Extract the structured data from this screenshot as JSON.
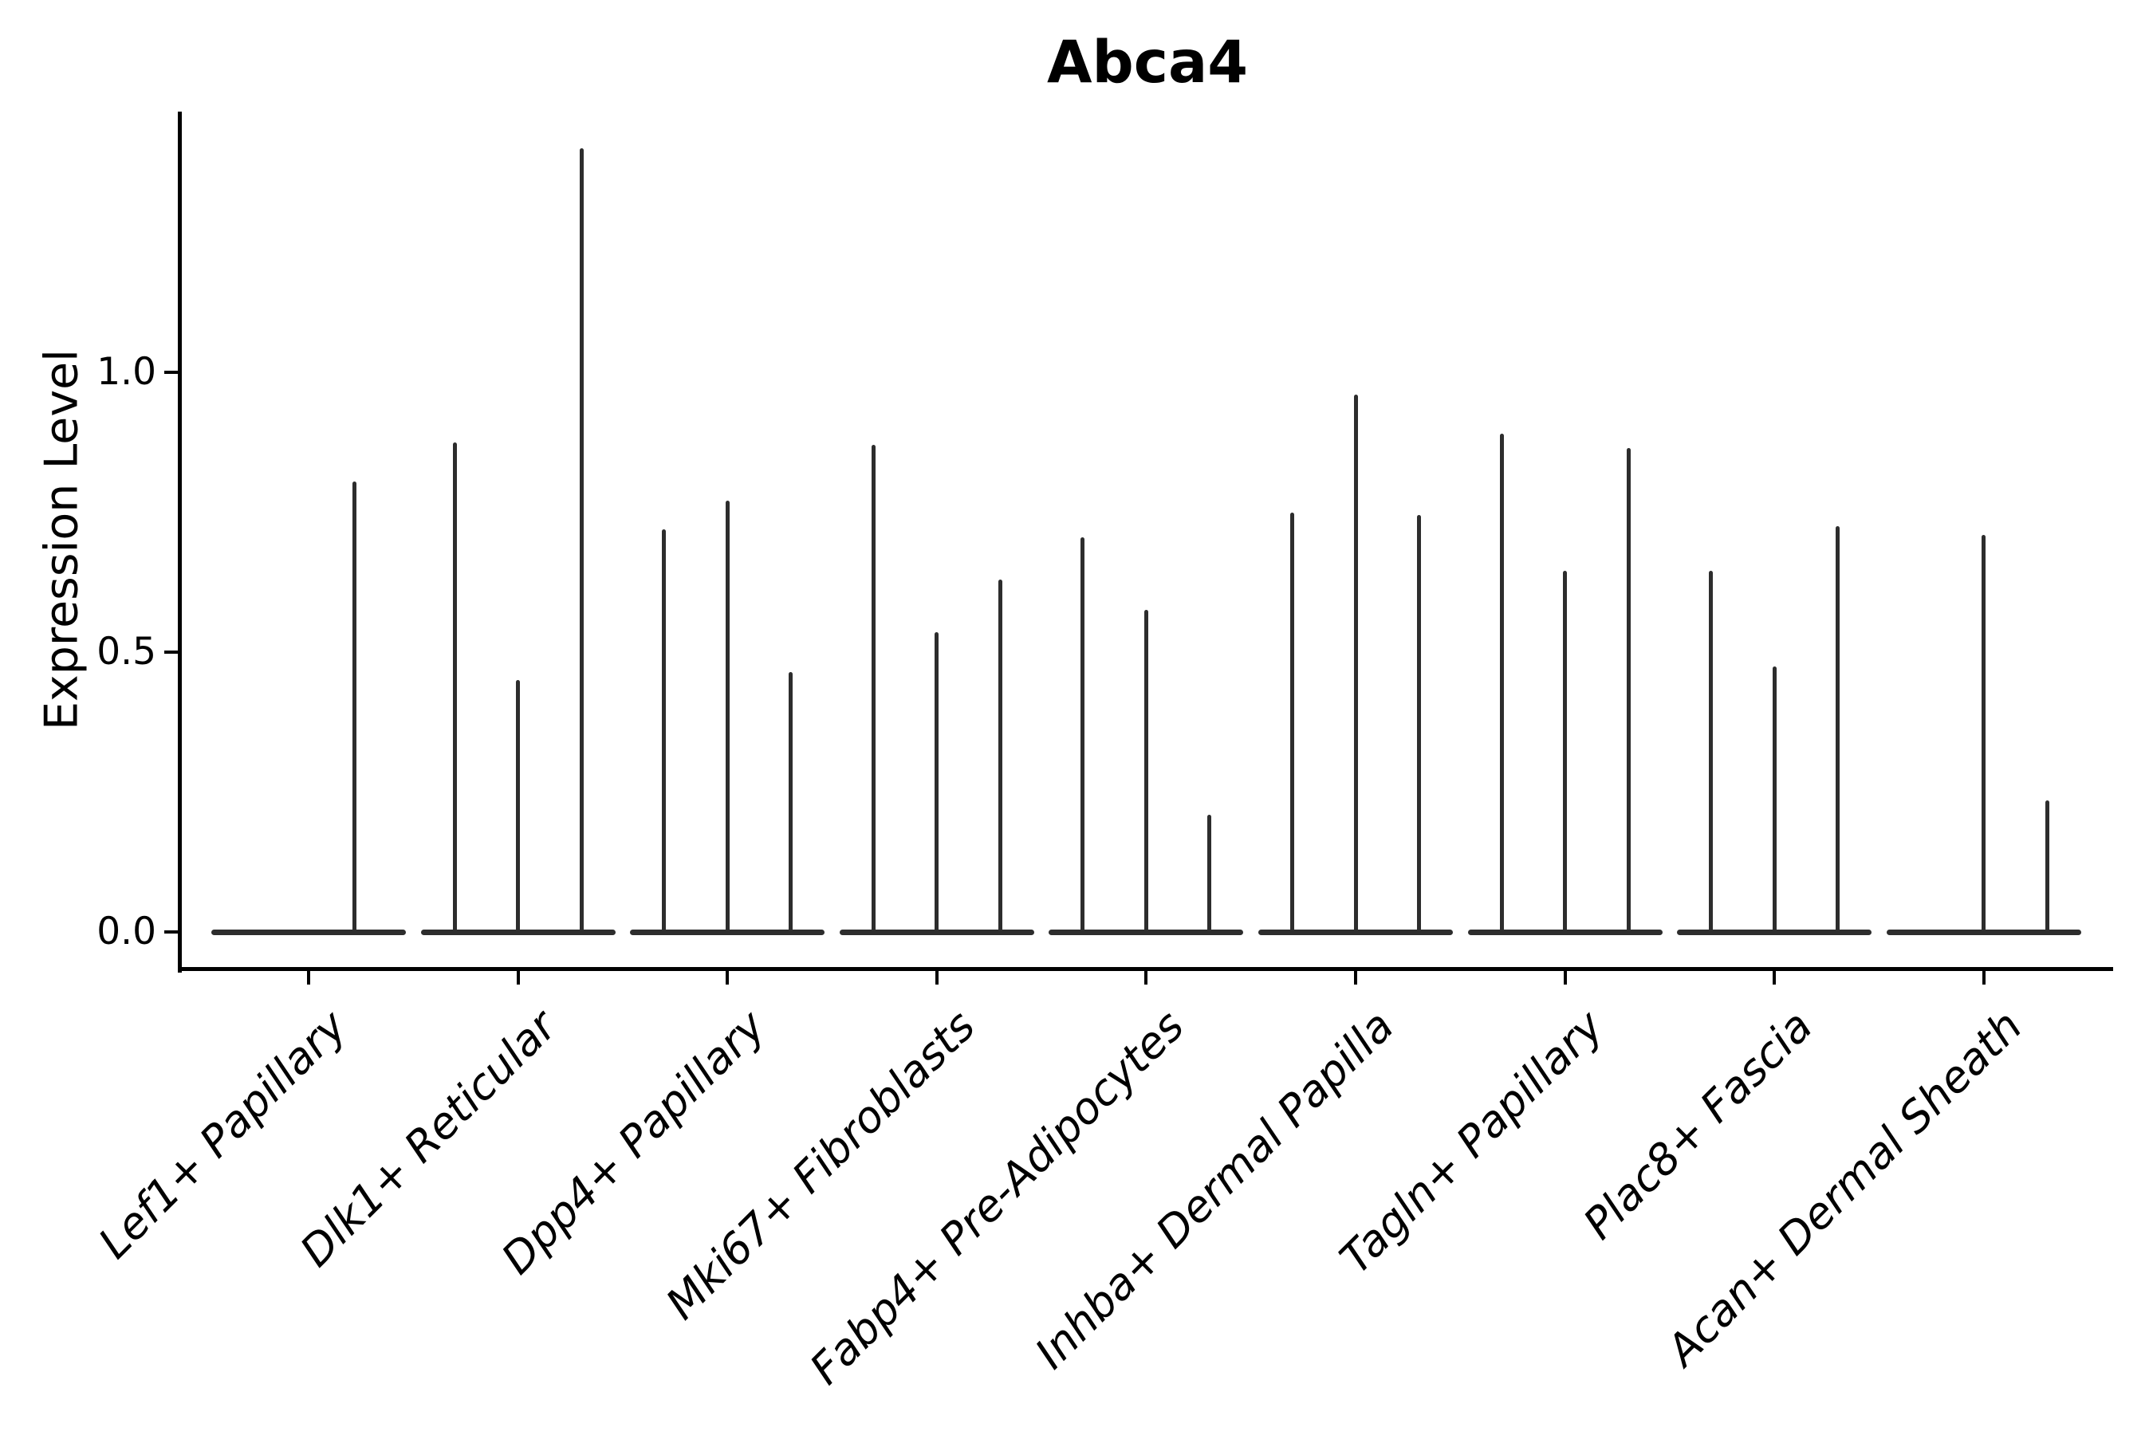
{
  "figure": {
    "background": "#ffffff"
  },
  "chart_data": {
    "type": "violin",
    "title": "Abca4",
    "xlabel": "",
    "ylabel": "Expression Level",
    "categories": [
      "Lef1+ Papillary",
      "Dlk1+ Reticular",
      "Dpp4+ Papillary",
      "Mki67+ Fibroblasts",
      "Fabp4+ Pre-Adipocytes",
      "Inhba+ Dermal Papilla",
      "Tagln+ Papillary",
      "Plac8+ Fascia",
      "Acan+ Dermal Sheath"
    ],
    "violins_per_category": 3,
    "series": [
      {
        "category": "Lef1+ Papillary",
        "max_values": [
          0,
          0,
          0.805
        ]
      },
      {
        "category": "Dlk1+ Reticular",
        "max_values": [
          0.875,
          0.45,
          1.4
        ]
      },
      {
        "category": "Dpp4+ Papillary",
        "max_values": [
          0.72,
          0.77,
          0.465
        ]
      },
      {
        "category": "Mki67+ Fibroblasts",
        "max_values": [
          0.87,
          0.535,
          0.63
        ]
      },
      {
        "category": "Fabp4+ Pre-Adipocytes",
        "max_values": [
          0.705,
          0.575,
          0.21
        ]
      },
      {
        "category": "Inhba+ Dermal Papilla",
        "max_values": [
          0.75,
          0.96,
          0.745
        ]
      },
      {
        "category": "Tagln+ Papillary",
        "max_values": [
          0.89,
          0.645,
          0.865
        ]
      },
      {
        "category": "Plac8+ Fascia",
        "max_values": [
          0.645,
          0.475,
          0.725
        ]
      },
      {
        "category": "Acan+ Dermal Sheath",
        "max_values": [
          0,
          0.71,
          0.235
        ]
      }
    ],
    "ytick_labels": [
      "0.0",
      "0.5",
      "1.0"
    ],
    "ytick_values": [
      0.0,
      0.5,
      1.0
    ],
    "ylim": [
      -0.07,
      1.47
    ],
    "grid": false,
    "legend": null,
    "colors": {
      "violin": "#2d2d2d",
      "axis": "#000000",
      "text": "#000000"
    }
  }
}
